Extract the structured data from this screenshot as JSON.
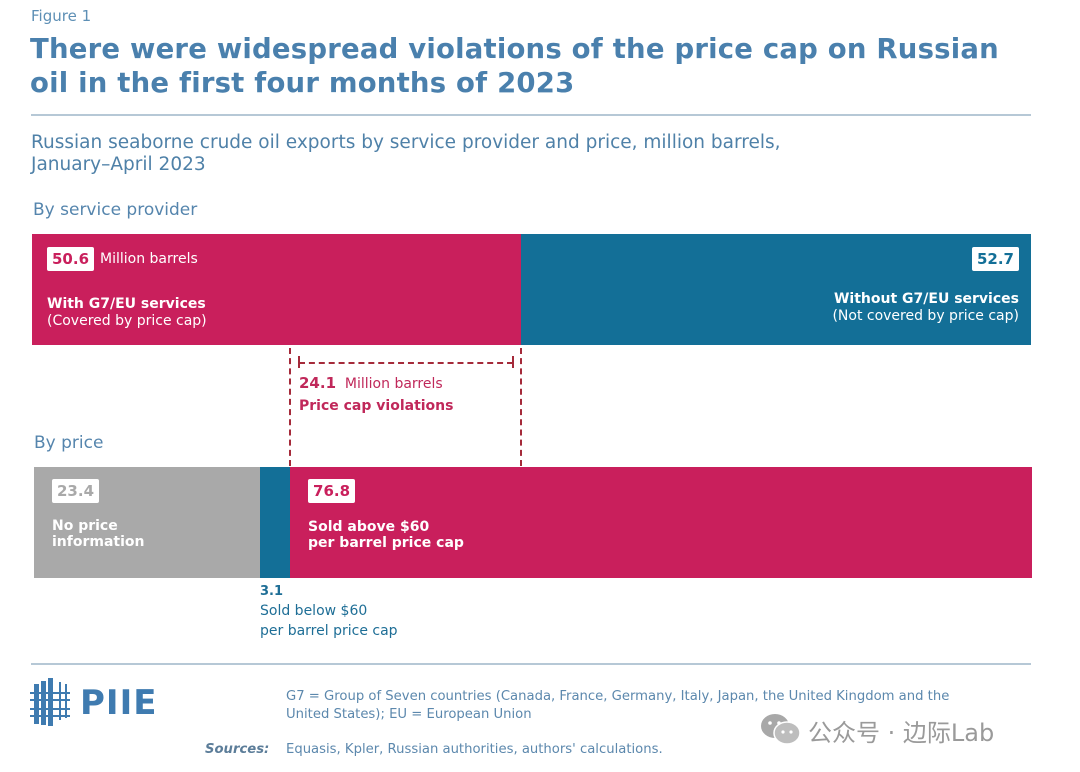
{
  "figure_label": "Figure 1",
  "title": "There were widespread violations of the price cap on Russian oil in the first four months of 2023",
  "subtitle_line1": "Russian seaborne crude oil exports by service provider and price, million barrels,",
  "subtitle_line2": "January–April 2023",
  "colors": {
    "pink": "#c91f5c",
    "blue": "#136f97",
    "gray": "#a9a9a9",
    "title_blue": "#4a80ad",
    "violation_red": "#a52a3a"
  },
  "chart_data": [
    {
      "type": "bar",
      "orientation": "horizontal-stacked",
      "section_title": "By service provider",
      "unit": "million barrels",
      "segments": [
        {
          "name": "With G7/EU services",
          "note": "(Covered by price cap)",
          "value": 50.6,
          "value_suffix": "Million barrels",
          "color": "pink"
        },
        {
          "name": "Without G7/EU services",
          "note": "(Not covered by price cap)",
          "value": 52.7,
          "color": "blue"
        }
      ]
    },
    {
      "type": "bar",
      "orientation": "horizontal-stacked",
      "section_title": "By price",
      "unit": "million barrels",
      "segments": [
        {
          "name_line1": "No price",
          "name_line2": "information",
          "value": 23.4,
          "color": "gray"
        },
        {
          "name_line1": "Sold below $60",
          "name_line2": "per barrel price cap",
          "value": 3.1,
          "color": "blue"
        },
        {
          "name_line1": "Sold above $60",
          "name_line2": "per barrel price cap",
          "value": 76.8,
          "color": "pink"
        }
      ]
    }
  ],
  "annotation": {
    "value": "24.1",
    "value_suffix": "Million barrels",
    "label": "Price cap violations"
  },
  "footer": {
    "logo": "PIIE",
    "note_line1": "G7 = Group of Seven countries (Canada, France, Germany, Italy, Japan, the United Kingdom and the",
    "note_line2": "United States); EU = European Union",
    "sources_label": "Sources:",
    "sources_text": "Equasis, Kpler, Russian authorities, authors' calculations."
  },
  "watermark": "公众号 · 边际Lab"
}
